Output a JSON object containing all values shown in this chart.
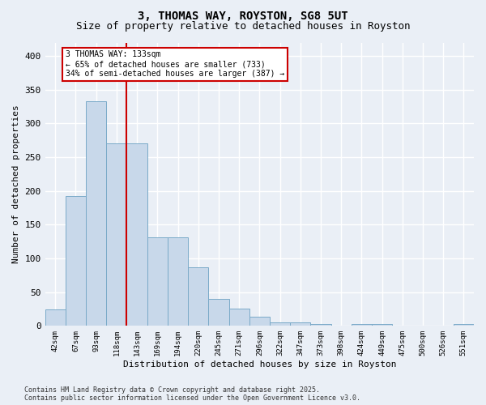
{
  "title1": "3, THOMAS WAY, ROYSTON, SG8 5UT",
  "title2": "Size of property relative to detached houses in Royston",
  "xlabel": "Distribution of detached houses by size in Royston",
  "ylabel": "Number of detached properties",
  "categories": [
    "42sqm",
    "67sqm",
    "93sqm",
    "118sqm",
    "143sqm",
    "169sqm",
    "194sqm",
    "220sqm",
    "245sqm",
    "271sqm",
    "296sqm",
    "322sqm",
    "347sqm",
    "373sqm",
    "398sqm",
    "424sqm",
    "449sqm",
    "475sqm",
    "500sqm",
    "526sqm",
    "551sqm"
  ],
  "values": [
    25,
    193,
    333,
    270,
    270,
    131,
    131,
    87,
    40,
    26,
    14,
    5,
    5,
    3,
    0,
    3,
    3,
    0,
    0,
    0,
    3
  ],
  "bar_color": "#c8d8ea",
  "bar_edge_color": "#7aaac8",
  "annotation_line_color": "#cc0000",
  "annotation_text_line1": "3 THOMAS WAY: 133sqm",
  "annotation_text_line2": "← 65% of detached houses are smaller (733)",
  "annotation_text_line3": "34% of semi-detached houses are larger (387) →",
  "annotation_box_color": "#ffffff",
  "annotation_box_edge": "#cc0000",
  "ylim": [
    0,
    420
  ],
  "yticks": [
    0,
    50,
    100,
    150,
    200,
    250,
    300,
    350,
    400
  ],
  "footer": "Contains HM Land Registry data © Crown copyright and database right 2025.\nContains public sector information licensed under the Open Government Licence v3.0.",
  "background_color": "#eaeff6",
  "grid_color": "#ffffff",
  "title_fontsize": 10,
  "subtitle_fontsize": 9,
  "bar_width": 1.0
}
